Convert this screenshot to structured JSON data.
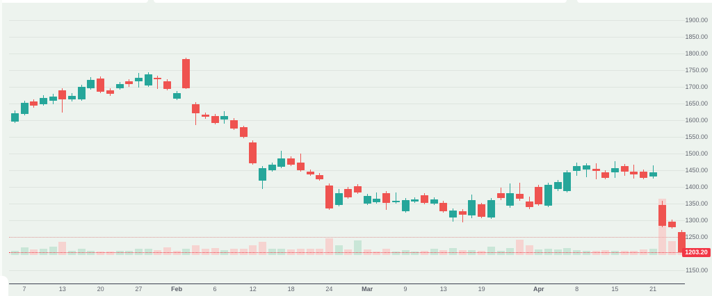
{
  "window": {
    "background": "#edf3ee",
    "card_color": "#ffffff"
  },
  "chart_data": {
    "type": "candlestick",
    "title": "",
    "up_color": "#26a69a",
    "down_color": "#ef5350",
    "volume_up_color": "#c9e6d7",
    "volume_down_color": "#f6d3d0",
    "accent_red": "#f23645",
    "grid": true,
    "legend": "none",
    "ylim": [
      1150,
      1900
    ],
    "last_price": 1203.2,
    "last_price_label": "1203.20",
    "price_axis": {
      "min": 1150,
      "max": 1900,
      "step": 50,
      "ticks": [
        {
          "label": "1900.00",
          "value": 1900
        },
        {
          "label": "1850.00",
          "value": 1850
        },
        {
          "label": "1800.00",
          "value": 1800
        },
        {
          "label": "1750.00",
          "value": 1750
        },
        {
          "label": "1700.00",
          "value": 1700
        },
        {
          "label": "1650.00",
          "value": 1650
        },
        {
          "label": "1600.00",
          "value": 1600
        },
        {
          "label": "1550.00",
          "value": 1550
        },
        {
          "label": "1500.00",
          "value": 1500
        },
        {
          "label": "1450.00",
          "value": 1450
        },
        {
          "label": "1400.00",
          "value": 1400
        },
        {
          "label": "1350.00",
          "value": 1350
        },
        {
          "label": "1300.00",
          "value": 1300
        },
        {
          "label": "1250.00",
          "value": 1250
        },
        {
          "label": "1150.00",
          "value": 1150
        }
      ]
    },
    "time_axis": {
      "ticks": [
        {
          "label": "7",
          "i": 1,
          "major": false
        },
        {
          "label": "13",
          "i": 5,
          "major": false
        },
        {
          "label": "20",
          "i": 9,
          "major": false
        },
        {
          "label": "27",
          "i": 13,
          "major": false
        },
        {
          "label": "Feb",
          "i": 17,
          "major": true
        },
        {
          "label": "6",
          "i": 21,
          "major": false
        },
        {
          "label": "12",
          "i": 25,
          "major": false
        },
        {
          "label": "18",
          "i": 29,
          "major": false
        },
        {
          "label": "24",
          "i": 33,
          "major": false
        },
        {
          "label": "Mar",
          "i": 37,
          "major": true
        },
        {
          "label": "9",
          "i": 41,
          "major": false
        },
        {
          "label": "13",
          "i": 45,
          "major": false
        },
        {
          "label": "19",
          "i": 49,
          "major": false
        },
        {
          "label": "Apr",
          "i": 55,
          "major": true
        },
        {
          "label": "8",
          "i": 59,
          "major": false
        },
        {
          "label": "15",
          "i": 63,
          "major": false
        },
        {
          "label": "21",
          "i": 67,
          "major": false
        }
      ]
    },
    "levels": [
      {
        "name": "alert-level",
        "price": 1250,
        "color": "#e8a09e",
        "style": "dotted"
      },
      {
        "name": "last-price-line",
        "price": 1203.2,
        "color": "#f23645",
        "style": "dotted"
      }
    ],
    "candles": [
      [
        1596,
        1629,
        1592,
        1621
      ],
      [
        1619,
        1658,
        1615,
        1652
      ],
      [
        1656,
        1662,
        1638,
        1644
      ],
      [
        1648,
        1675,
        1644,
        1667
      ],
      [
        1658,
        1679,
        1648,
        1671
      ],
      [
        1690,
        1696,
        1623,
        1662
      ],
      [
        1662,
        1681,
        1656,
        1673
      ],
      [
        1662,
        1706,
        1658,
        1700
      ],
      [
        1696,
        1729,
        1692,
        1721
      ],
      [
        1725,
        1731,
        1681,
        1685
      ],
      [
        1690,
        1696,
        1673,
        1679
      ],
      [
        1696,
        1715,
        1692,
        1708
      ],
      [
        1717,
        1723,
        1700,
        1709
      ],
      [
        1717,
        1742,
        1698,
        1727
      ],
      [
        1704,
        1744,
        1700,
        1737
      ],
      [
        1727,
        1733,
        1694,
        1723
      ],
      [
        1717,
        1723,
        1690,
        1694
      ],
      [
        1665,
        1688,
        1660,
        1681
      ],
      [
        1783,
        1788,
        1694,
        1696
      ],
      [
        1648,
        1654,
        1585,
        1621
      ],
      [
        1617,
        1623,
        1604,
        1610
      ],
      [
        1612,
        1619,
        1588,
        1592
      ],
      [
        1602,
        1627,
        1590,
        1612
      ],
      [
        1600,
        1606,
        1571,
        1575
      ],
      [
        1579,
        1583,
        1546,
        1550
      ],
      [
        1533,
        1540,
        1467,
        1471
      ],
      [
        1419,
        1462,
        1394,
        1456
      ],
      [
        1450,
        1473,
        1446,
        1467
      ],
      [
        1460,
        1508,
        1456,
        1485
      ],
      [
        1485,
        1492,
        1462,
        1467
      ],
      [
        1473,
        1500,
        1446,
        1450
      ],
      [
        1446,
        1452,
        1433,
        1437
      ],
      [
        1435,
        1442,
        1419,
        1423
      ],
      [
        1404,
        1410,
        1331,
        1335
      ],
      [
        1346,
        1394,
        1342,
        1381
      ],
      [
        1394,
        1400,
        1365,
        1369
      ],
      [
        1402,
        1408,
        1379,
        1383
      ],
      [
        1350,
        1379,
        1346,
        1373
      ],
      [
        1354,
        1383,
        1350,
        1365
      ],
      [
        1381,
        1387,
        1331,
        1352
      ],
      [
        1354,
        1383,
        1350,
        1358
      ],
      [
        1327,
        1367,
        1323,
        1360
      ],
      [
        1356,
        1369,
        1352,
        1362
      ],
      [
        1375,
        1381,
        1348,
        1352
      ],
      [
        1350,
        1369,
        1346,
        1362
      ],
      [
        1352,
        1358,
        1323,
        1327
      ],
      [
        1308,
        1335,
        1296,
        1329
      ],
      [
        1327,
        1333,
        1294,
        1317
      ],
      [
        1315,
        1377,
        1306,
        1360
      ],
      [
        1348,
        1352,
        1306,
        1310
      ],
      [
        1308,
        1367,
        1304,
        1360
      ],
      [
        1381,
        1398,
        1360,
        1367
      ],
      [
        1344,
        1410,
        1337,
        1381
      ],
      [
        1379,
        1412,
        1358,
        1365
      ],
      [
        1356,
        1371,
        1333,
        1340
      ],
      [
        1400,
        1406,
        1344,
        1348
      ],
      [
        1344,
        1412,
        1340,
        1406
      ],
      [
        1394,
        1421,
        1388,
        1415
      ],
      [
        1388,
        1450,
        1383,
        1444
      ],
      [
        1448,
        1473,
        1433,
        1462
      ],
      [
        1452,
        1471,
        1429,
        1465
      ],
      [
        1454,
        1471,
        1423,
        1448
      ],
      [
        1444,
        1450,
        1423,
        1427
      ],
      [
        1444,
        1477,
        1427,
        1456
      ],
      [
        1462,
        1469,
        1433,
        1446
      ],
      [
        1446,
        1467,
        1425,
        1437
      ],
      [
        1446,
        1452,
        1423,
        1427
      ],
      [
        1431,
        1465,
        1425,
        1444
      ],
      [
        1346,
        1358,
        1279,
        1283
      ],
      [
        1296,
        1302,
        1275,
        1279
      ],
      [
        1265,
        1271,
        1202,
        1203.2
      ]
    ],
    "volumes": [
      7,
      14,
      10,
      11,
      15,
      23,
      7,
      11,
      7,
      6,
      6,
      7,
      7,
      11,
      11,
      9,
      14,
      7,
      11,
      17,
      11,
      12,
      9,
      11,
      11,
      17,
      23,
      11,
      11,
      10,
      11,
      11,
      11,
      30,
      17,
      10,
      26,
      10,
      6,
      11,
      6,
      9,
      6,
      7,
      11,
      9,
      12,
      9,
      9,
      7,
      15,
      7,
      12,
      27,
      17,
      10,
      11,
      10,
      12,
      9,
      7,
      7,
      9,
      7,
      7,
      7,
      10,
      11,
      100,
      25,
      19
    ]
  }
}
